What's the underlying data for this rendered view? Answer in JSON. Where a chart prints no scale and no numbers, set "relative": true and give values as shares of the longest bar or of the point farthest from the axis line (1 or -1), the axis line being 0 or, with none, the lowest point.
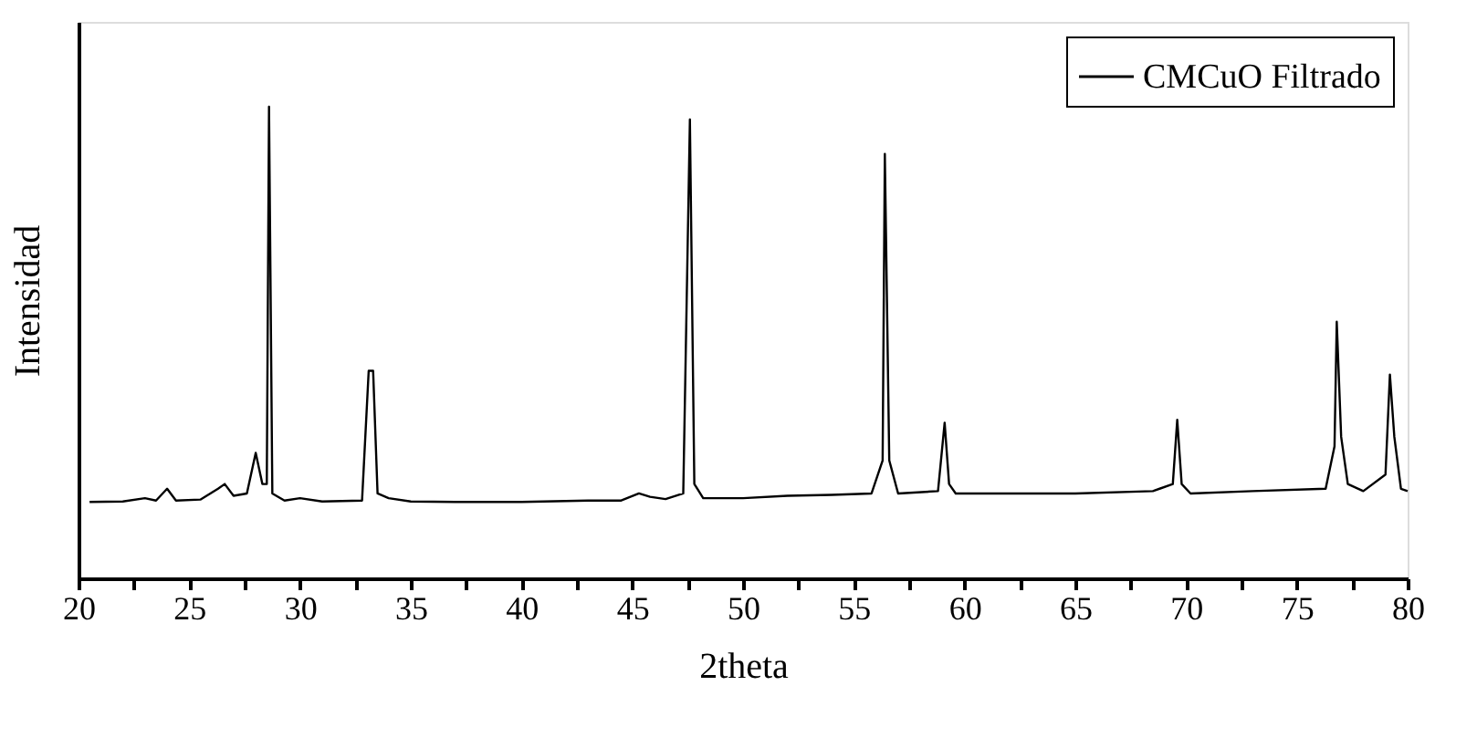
{
  "chart_data": {
    "type": "line",
    "xlabel": "2theta",
    "ylabel": "Intensidad",
    "relative": true,
    "xlim": [
      20,
      80
    ],
    "xticks": [
      20,
      {
        "value": 22.5,
        "label": null
      },
      25,
      {
        "value": 27.5,
        "label": null
      },
      30,
      {
        "value": 32.5,
        "label": null
      },
      35,
      {
        "value": 37.5,
        "label": null
      },
      40,
      {
        "value": 42.5,
        "label": null
      },
      45,
      {
        "value": 47.5,
        "label": null
      },
      50,
      {
        "value": 52.5,
        "label": null
      },
      55,
      {
        "value": 57.5,
        "label": null
      },
      60,
      {
        "value": 62.5,
        "label": null
      },
      65,
      {
        "value": 67.5,
        "label": null
      },
      70,
      {
        "value": 72.5,
        "label": null
      },
      75,
      {
        "value": 77.5,
        "label": null
      },
      80
    ],
    "legend": "top right",
    "grid": false,
    "marker": "none",
    "line_style": "solid",
    "series": [
      {
        "name": "CMCuO Filtrado",
        "color": "#000000",
        "x": [
          20.5,
          22,
          23,
          23.5,
          24,
          24.4,
          25.5,
          26.3,
          26.6,
          27,
          27.6,
          28.0,
          28.3,
          28.5,
          28.6,
          28.75,
          29.3,
          30,
          31,
          32.8,
          33.1,
          33.3,
          33.5,
          34,
          35,
          37,
          40,
          43,
          44.5,
          45.3,
          45.8,
          46.5,
          47.3,
          47.6,
          47.8,
          48.2,
          50,
          52,
          54,
          55.8,
          56.3,
          56.4,
          56.6,
          57,
          58.8,
          59.1,
          59.3,
          59.6,
          62,
          65,
          68.5,
          69.4,
          69.6,
          69.8,
          70.2,
          73,
          76.3,
          76.7,
          76.8,
          77.0,
          77.3,
          78,
          79.0,
          79.2,
          79.4,
          79.7,
          80.0
        ],
        "values": [
          0.162,
          0.163,
          0.17,
          0.165,
          0.19,
          0.165,
          0.167,
          0.19,
          0.2,
          0.175,
          0.18,
          0.266,
          0.2,
          0.2,
          1.0,
          0.18,
          0.165,
          0.17,
          0.163,
          0.165,
          0.44,
          0.44,
          0.18,
          0.17,
          0.163,
          0.162,
          0.162,
          0.165,
          0.165,
          0.18,
          0.173,
          0.168,
          0.18,
          0.973,
          0.2,
          0.17,
          0.17,
          0.175,
          0.177,
          0.18,
          0.25,
          0.9,
          0.25,
          0.18,
          0.185,
          0.33,
          0.2,
          0.18,
          0.18,
          0.18,
          0.185,
          0.2,
          0.336,
          0.2,
          0.18,
          0.185,
          0.19,
          0.28,
          0.544,
          0.3,
          0.2,
          0.185,
          0.22,
          0.432,
          0.3,
          0.19,
          0.185
        ]
      }
    ]
  }
}
